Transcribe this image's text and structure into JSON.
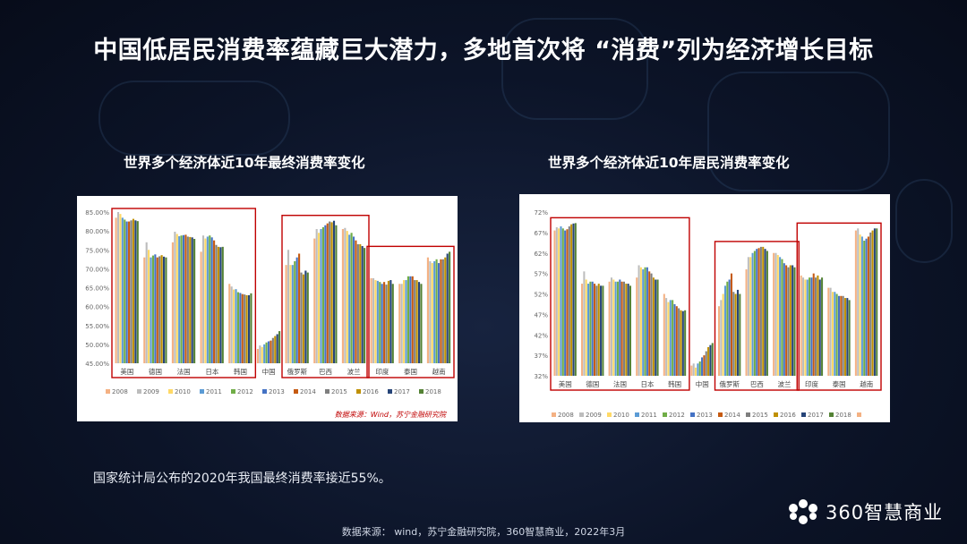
{
  "title": "中国低居民消费率蕴藏巨大潜力，多地首次将 “消费”列为经济增长目标",
  "note": "国家统计局公布的2020年我国最终消费率接近55%。",
  "source": "数据来源： wind，苏宁金融研究院，360智慧商业，2022年3月",
  "logo_text": "360智慧商业",
  "colors": {
    "series": [
      "#f4b183",
      "#bdbdbd",
      "#ffd966",
      "#5b9bd5",
      "#70ad47",
      "#4472c4",
      "#c55a11",
      "#7f7f7f",
      "#bf9000",
      "#264478",
      "#548235"
    ],
    "highlight_box": "#c00000",
    "watermark": "#c00000"
  },
  "chart_data": [
    {
      "type": "bar",
      "title": "世界多个经济体近10年最终消费率变化",
      "watermark": "数据来源：Wind，苏宁金融研究院",
      "categories": [
        "美国",
        "德国",
        "法国",
        "日本",
        "韩国",
        "中国",
        "俄罗斯",
        "巴西",
        "波兰",
        "印度",
        "泰国",
        "越南"
      ],
      "ylim": [
        45,
        85
      ],
      "ytick_labels": [
        "85.00%",
        "80.00%",
        "75.00%",
        "70.00%",
        "65.00%",
        "60.00%",
        "55.00%",
        "50.00%",
        "45.00%"
      ],
      "ytick_values": [
        85,
        80,
        75,
        70,
        65,
        60,
        55,
        50,
        45
      ],
      "highlight_groups": [
        [
          0,
          4
        ],
        [
          6,
          8
        ],
        [
          9,
          11
        ]
      ],
      "legend": [
        "2008",
        "2009",
        "2010",
        "2011",
        "2012",
        "2013",
        "2014",
        "2015",
        "2016",
        "2017",
        "2018"
      ],
      "values": [
        [
          83.5,
          85.0,
          84.5,
          83.5,
          83.0,
          82.5,
          82.5,
          82.8,
          83.2,
          82.8,
          82.6
        ],
        [
          73.0,
          77.0,
          75.0,
          73.0,
          73.5,
          73.8,
          73.0,
          73.3,
          73.6,
          73.2,
          73.0
        ],
        [
          77.0,
          79.8,
          79.2,
          78.6,
          78.8,
          78.9,
          79.0,
          78.5,
          78.4,
          78.3,
          77.9
        ],
        [
          74.5,
          78.8,
          78.0,
          78.5,
          78.8,
          78.3,
          77.5,
          76.3,
          75.8,
          75.7,
          75.8
        ],
        [
          66.0,
          65.3,
          64.5,
          64.6,
          63.8,
          63.6,
          63.3,
          63.2,
          63.0,
          63.0,
          63.5
        ],
        [
          48.8,
          49.7,
          49.3,
          50.0,
          50.5,
          50.8,
          51.0,
          51.7,
          52.2,
          52.7,
          53.5
        ],
        [
          71.0,
          75.0,
          71.0,
          71.0,
          72.0,
          73.0,
          74.0,
          69.0,
          68.5,
          69.5,
          69.0
        ],
        [
          78.0,
          80.5,
          79.5,
          80.5,
          81.0,
          81.5,
          82.0,
          82.5,
          82.3,
          82.7,
          81.5
        ],
        [
          80.5,
          80.8,
          80.0,
          79.0,
          79.5,
          78.5,
          77.5,
          76.5,
          76.5,
          76.0,
          75.5
        ],
        [
          67.5,
          67.5,
          67.0,
          66.8,
          66.5,
          66.0,
          66.5,
          65.8,
          66.8,
          67.0,
          66.0
        ],
        [
          66.0,
          66.0,
          67.0,
          67.0,
          68.0,
          68.0,
          68.0,
          67.0,
          67.0,
          66.5,
          66.0
        ],
        [
          73.0,
          72.0,
          71.5,
          72.0,
          72.5,
          71.5,
          72.5,
          72.5,
          73.0,
          74.0,
          74.5
        ]
      ]
    },
    {
      "type": "bar",
      "title": "世界多个经济体近10年居民消费率变化",
      "categories": [
        "美国",
        "德国",
        "法国",
        "日本",
        "韩国",
        "中国",
        "俄罗斯",
        "巴西",
        "波兰",
        "印度",
        "泰国",
        "越南"
      ],
      "ylim": [
        32,
        72
      ],
      "ytick_labels": [
        "72%",
        "67%",
        "62%",
        "57%",
        "52%",
        "47%",
        "42%",
        "37%",
        "32%"
      ],
      "ytick_values": [
        72,
        67,
        62,
        57,
        52,
        47,
        42,
        37,
        32
      ],
      "highlight_groups": [
        [
          0,
          4
        ],
        [
          6,
          8
        ],
        [
          9,
          11
        ]
      ],
      "legend": [
        "2008",
        "2009",
        "2010",
        "2011",
        "2012",
        "2013",
        "2014",
        "2015",
        "2016",
        "2017",
        "2018",
        ""
      ],
      "values": [
        [
          67.5,
          68.3,
          68.0,
          68.5,
          68.0,
          67.5,
          67.8,
          68.5,
          69.0,
          69.2,
          69.3
        ],
        [
          54.5,
          57.5,
          55.5,
          54.5,
          55.0,
          55.0,
          54.5,
          54.0,
          54.5,
          54.0,
          54.0
        ],
        [
          55.0,
          56.0,
          55.5,
          55.0,
          55.0,
          55.5,
          55.0,
          55.0,
          54.5,
          54.5,
          54.0
        ],
        [
          56.0,
          59.0,
          58.5,
          58.0,
          58.5,
          58.5,
          57.5,
          57.0,
          56.0,
          55.5,
          55.5
        ],
        [
          52.0,
          51.0,
          50.0,
          50.5,
          50.5,
          49.5,
          49.0,
          48.5,
          48.0,
          47.8,
          48.0
        ],
        [
          34.5,
          35.0,
          34.0,
          35.0,
          35.5,
          36.5,
          37.0,
          38.0,
          39.0,
          39.5,
          40.0
        ],
        [
          49.0,
          50.5,
          52.0,
          54.0,
          55.0,
          55.5,
          57.0,
          52.5,
          52.0,
          53.0,
          52.0
        ],
        [
          58.0,
          61.0,
          61.0,
          62.0,
          62.5,
          63.0,
          63.2,
          63.5,
          63.5,
          63.0,
          62.5
        ],
        [
          62.0,
          62.0,
          61.5,
          61.0,
          60.5,
          59.5,
          59.0,
          58.5,
          59.0,
          59.0,
          58.5
        ],
        [
          56.5,
          56.0,
          55.5,
          55.5,
          56.0,
          56.0,
          57.0,
          56.0,
          56.5,
          55.5,
          56.0
        ],
        [
          53.5,
          53.5,
          52.5,
          52.5,
          52.0,
          51.5,
          51.5,
          51.5,
          51.0,
          51.0,
          50.5
        ],
        [
          67.5,
          68.0,
          66.5,
          66.0,
          65.0,
          65.5,
          66.0,
          67.0,
          67.5,
          68.0,
          68.0
        ]
      ]
    }
  ]
}
